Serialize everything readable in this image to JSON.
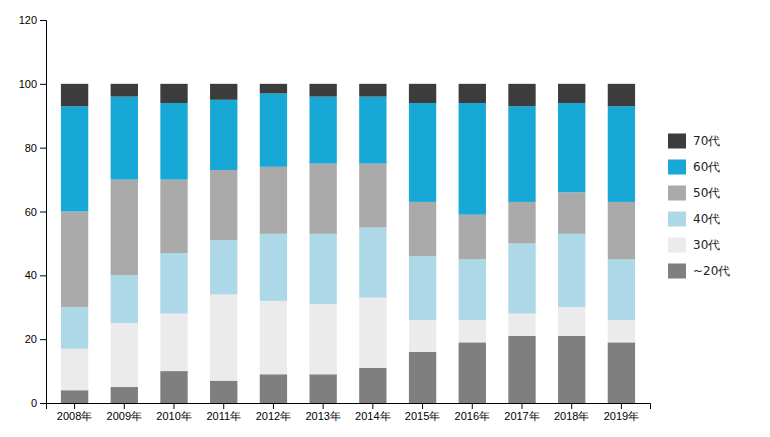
{
  "chart_data": {
    "type": "bar",
    "stacked": true,
    "categories": [
      "2008年",
      "2009年",
      "2010年",
      "2011年",
      "2012年",
      "2013年",
      "2014年",
      "2015年",
      "2016年",
      "2017年",
      "2018年",
      "2019年"
    ],
    "series": [
      {
        "name": "~20代",
        "color": "#7f7f7f",
        "values": [
          4,
          5,
          10,
          7,
          9,
          9,
          11,
          16,
          19,
          21,
          21,
          19
        ]
      },
      {
        "name": "30代",
        "color": "#ebebeb",
        "values": [
          13,
          20,
          18,
          27,
          23,
          22,
          22,
          10,
          7,
          7,
          9,
          7
        ]
      },
      {
        "name": "40代",
        "color": "#add8e8",
        "values": [
          13,
          15,
          19,
          17,
          21,
          22,
          22,
          20,
          19,
          22,
          23,
          19
        ]
      },
      {
        "name": "50代",
        "color": "#aaaaaa",
        "values": [
          30,
          30,
          23,
          22,
          21,
          22,
          20,
          17,
          14,
          13,
          13,
          18
        ]
      },
      {
        "name": "60代",
        "color": "#18a8d5",
        "values": [
          33,
          26,
          24,
          22,
          23,
          21,
          21,
          31,
          35,
          30,
          28,
          30
        ]
      },
      {
        "name": "70代",
        "color": "#3c3c3c",
        "values": [
          7,
          4,
          6,
          5,
          3,
          4,
          4,
          6,
          6,
          7,
          6,
          7
        ]
      }
    ],
    "ylim": [
      0,
      120
    ],
    "yticks": [
      0,
      20,
      40,
      60,
      80,
      100,
      120
    ],
    "grid": false,
    "legend": "right"
  }
}
